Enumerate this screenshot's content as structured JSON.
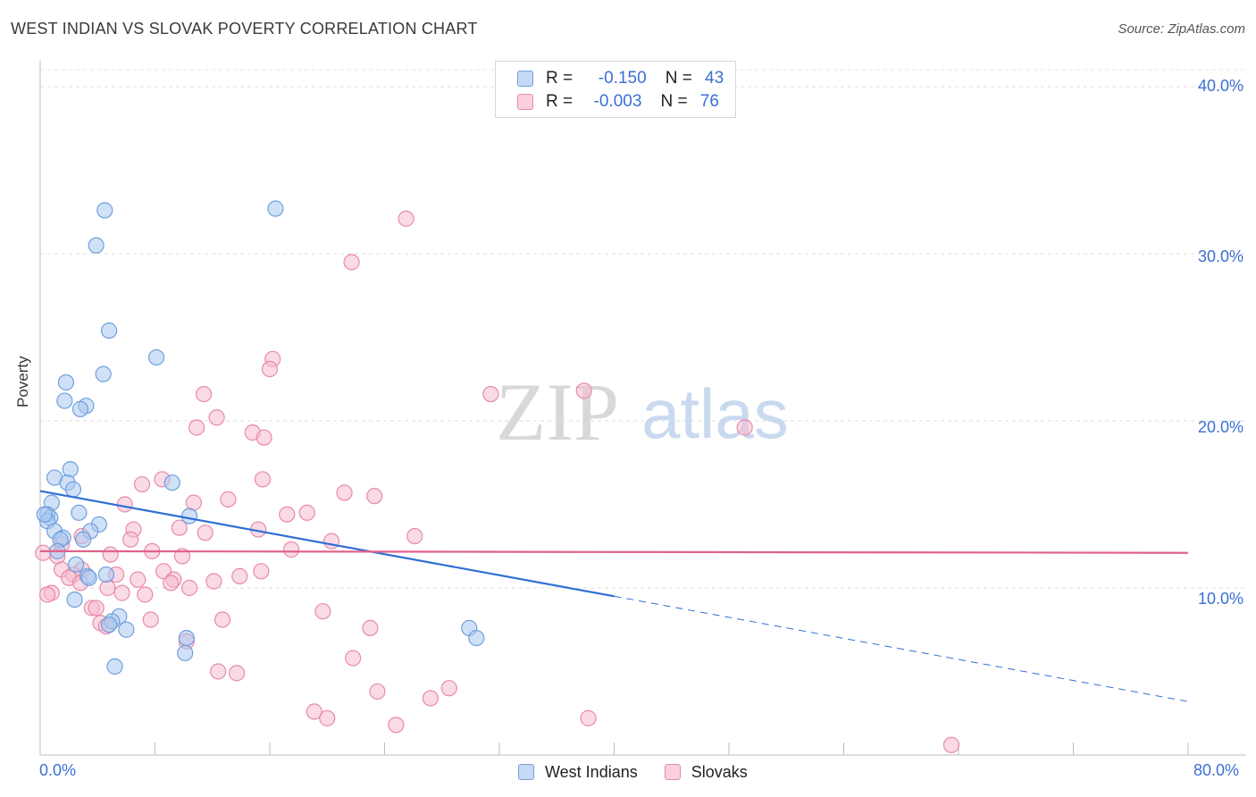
{
  "title": "WEST INDIAN VS SLOVAK POVERTY CORRELATION CHART",
  "source": "Source: ZipAtlas.com",
  "watermark": {
    "zip": "ZIP",
    "atlas": "atlas"
  },
  "colors": {
    "blue_fill": "#aac8f0",
    "blue_stroke": "#6f9fdc",
    "blue_line": "#2f6fd6",
    "pink_fill": "#f5bcd0",
    "pink_stroke": "#e88aa9",
    "pink_line": "#e0628c",
    "tick_text": "#3b6fd4"
  },
  "legend_top": [
    {
      "r_label": "R =",
      "r_value": "-0.150",
      "n_label": "N =",
      "n_value": "43"
    },
    {
      "r_label": "R =",
      "r_value": "-0.003",
      "n_label": "N =",
      "n_value": "76"
    }
  ],
  "legend_bottom": [
    "West Indians",
    "Slovaks"
  ],
  "chart_data": {
    "type": "scatter",
    "title": "WEST INDIAN VS SLOVAK POVERTY CORRELATION CHART",
    "xlabel": "",
    "ylabel": "Poverty",
    "xlim": [
      0,
      80
    ],
    "ylim": [
      0,
      40
    ],
    "x_tick_labels": [
      "0.0%",
      "80.0%"
    ],
    "y_tick_labels": [
      "10.0%",
      "20.0%",
      "30.0%",
      "40.0%"
    ],
    "y_ticks": [
      10,
      20,
      30,
      40
    ],
    "series": [
      {
        "name": "West Indians",
        "r": -0.15,
        "n": 43,
        "trend": {
          "x0": 0,
          "y0": 15.8,
          "x1": 40,
          "y1": 9.5,
          "dash_to_x": 80,
          "dash_to_y": 3.2
        },
        "points": [
          [
            4.5,
            32.6
          ],
          [
            16.4,
            32.7
          ],
          [
            3.9,
            30.5
          ],
          [
            4.8,
            25.4
          ],
          [
            8.1,
            23.8
          ],
          [
            4.4,
            22.8
          ],
          [
            1.8,
            22.3
          ],
          [
            1.7,
            21.2
          ],
          [
            3.2,
            20.9
          ],
          [
            2.8,
            20.7
          ],
          [
            2.1,
            17.1
          ],
          [
            1.0,
            16.6
          ],
          [
            1.9,
            16.3
          ],
          [
            9.2,
            16.3
          ],
          [
            2.3,
            15.9
          ],
          [
            0.8,
            15.1
          ],
          [
            0.5,
            14.4
          ],
          [
            0.7,
            14.2
          ],
          [
            0.5,
            14.0
          ],
          [
            2.7,
            14.5
          ],
          [
            10.4,
            14.3
          ],
          [
            4.1,
            13.8
          ],
          [
            1.0,
            13.4
          ],
          [
            3.5,
            13.4
          ],
          [
            1.6,
            13.0
          ],
          [
            1.4,
            12.9
          ],
          [
            3.0,
            12.9
          ],
          [
            1.2,
            12.2
          ],
          [
            2.5,
            11.4
          ],
          [
            3.3,
            10.7
          ],
          [
            4.6,
            10.8
          ],
          [
            2.4,
            9.3
          ],
          [
            5.5,
            8.3
          ],
          [
            5.0,
            8.0
          ],
          [
            4.8,
            7.8
          ],
          [
            6.0,
            7.5
          ],
          [
            10.2,
            7.0
          ],
          [
            29.9,
            7.6
          ],
          [
            10.1,
            6.1
          ],
          [
            30.4,
            7.0
          ],
          [
            5.2,
            5.3
          ],
          [
            0.3,
            14.4
          ],
          [
            3.4,
            10.6
          ]
        ]
      },
      {
        "name": "Slovaks",
        "r": -0.003,
        "n": 76,
        "trend": {
          "x0": 0,
          "y0": 12.2,
          "x1": 80,
          "y1": 12.1
        },
        "points": [
          [
            25.5,
            32.1
          ],
          [
            21.7,
            29.5
          ],
          [
            16.2,
            23.7
          ],
          [
            16.0,
            23.1
          ],
          [
            11.4,
            21.6
          ],
          [
            31.4,
            21.6
          ],
          [
            37.9,
            21.8
          ],
          [
            12.3,
            20.2
          ],
          [
            49.1,
            19.6
          ],
          [
            10.9,
            19.6
          ],
          [
            14.8,
            19.3
          ],
          [
            15.6,
            19.0
          ],
          [
            8.5,
            16.5
          ],
          [
            15.5,
            16.5
          ],
          [
            7.1,
            16.2
          ],
          [
            21.2,
            15.7
          ],
          [
            23.3,
            15.5
          ],
          [
            13.1,
            15.3
          ],
          [
            10.7,
            15.1
          ],
          [
            5.9,
            15.0
          ],
          [
            17.2,
            14.4
          ],
          [
            18.6,
            14.5
          ],
          [
            6.5,
            13.5
          ],
          [
            9.7,
            13.6
          ],
          [
            15.2,
            13.5
          ],
          [
            11.5,
            13.3
          ],
          [
            26.1,
            13.1
          ],
          [
            2.9,
            13.1
          ],
          [
            6.3,
            12.9
          ],
          [
            20.3,
            12.8
          ],
          [
            1.5,
            12.6
          ],
          [
            7.8,
            12.2
          ],
          [
            17.5,
            12.3
          ],
          [
            4.9,
            12.0
          ],
          [
            9.9,
            11.9
          ],
          [
            1.2,
            11.9
          ],
          [
            0.2,
            12.1
          ],
          [
            1.5,
            11.1
          ],
          [
            2.9,
            11.1
          ],
          [
            8.6,
            11.0
          ],
          [
            15.4,
            11.0
          ],
          [
            2.3,
            10.8
          ],
          [
            13.9,
            10.7
          ],
          [
            5.3,
            10.8
          ],
          [
            2.0,
            10.6
          ],
          [
            9.3,
            10.5
          ],
          [
            6.8,
            10.5
          ],
          [
            9.1,
            10.3
          ],
          [
            12.1,
            10.4
          ],
          [
            2.8,
            10.3
          ],
          [
            4.7,
            10.0
          ],
          [
            10.4,
            10.0
          ],
          [
            0.8,
            9.7
          ],
          [
            0.5,
            9.6
          ],
          [
            7.3,
            9.6
          ],
          [
            5.7,
            9.7
          ],
          [
            3.6,
            8.8
          ],
          [
            3.9,
            8.8
          ],
          [
            19.7,
            8.6
          ],
          [
            7.7,
            8.1
          ],
          [
            12.7,
            8.1
          ],
          [
            4.2,
            7.9
          ],
          [
            4.6,
            7.7
          ],
          [
            23.0,
            7.6
          ],
          [
            10.2,
            6.8
          ],
          [
            21.8,
            5.8
          ],
          [
            12.4,
            5.0
          ],
          [
            13.7,
            4.9
          ],
          [
            23.5,
            3.8
          ],
          [
            27.2,
            3.4
          ],
          [
            28.5,
            4.0
          ],
          [
            19.1,
            2.6
          ],
          [
            20.0,
            2.2
          ],
          [
            24.8,
            1.8
          ],
          [
            38.2,
            2.2
          ],
          [
            63.5,
            0.6
          ]
        ]
      }
    ]
  }
}
